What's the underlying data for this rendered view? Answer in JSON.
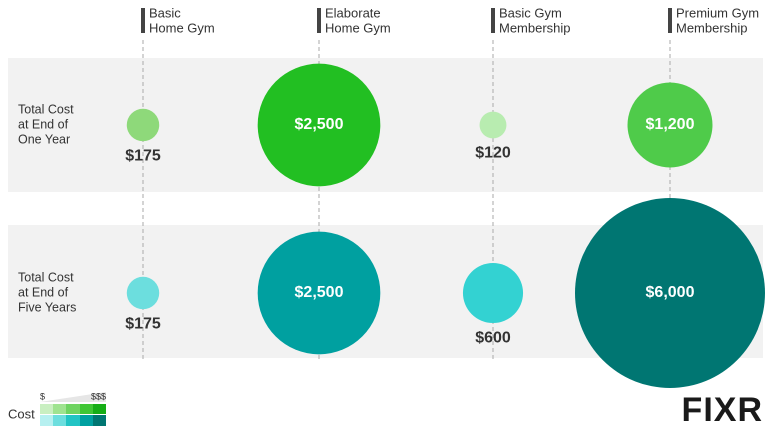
{
  "chart_data": {
    "type": "bubble",
    "categories": [
      [
        "Basic",
        "Home Gym"
      ],
      [
        "Elaborate",
        "Home Gym"
      ],
      [
        "Basic Gym",
        "Membership"
      ],
      [
        "Premium Gym",
        "Membership"
      ]
    ],
    "series": [
      {
        "name": [
          "Total Cost",
          "at End of",
          "One Year"
        ],
        "values": [
          175,
          2500,
          120,
          1200
        ],
        "value_labels": [
          "$175",
          "$2,500",
          "$120",
          "$1,200"
        ],
        "colors": [
          "#8ed97a",
          "#22bf22",
          "#b8ecb0",
          "#4fcb4a"
        ]
      },
      {
        "name": [
          "Total Cost",
          "at End of",
          "Five Years"
        ],
        "values": [
          175,
          2500,
          600,
          6000
        ],
        "value_labels": [
          "$175",
          "$2,500",
          "$600",
          "$6,000"
        ],
        "colors": [
          "#6cdede",
          "#00a0a0",
          "#33d2d2",
          "#007672"
        ]
      }
    ],
    "legend": {
      "title": "Cost",
      "low": "$",
      "high": "$$$"
    },
    "logo": "FIXR"
  }
}
